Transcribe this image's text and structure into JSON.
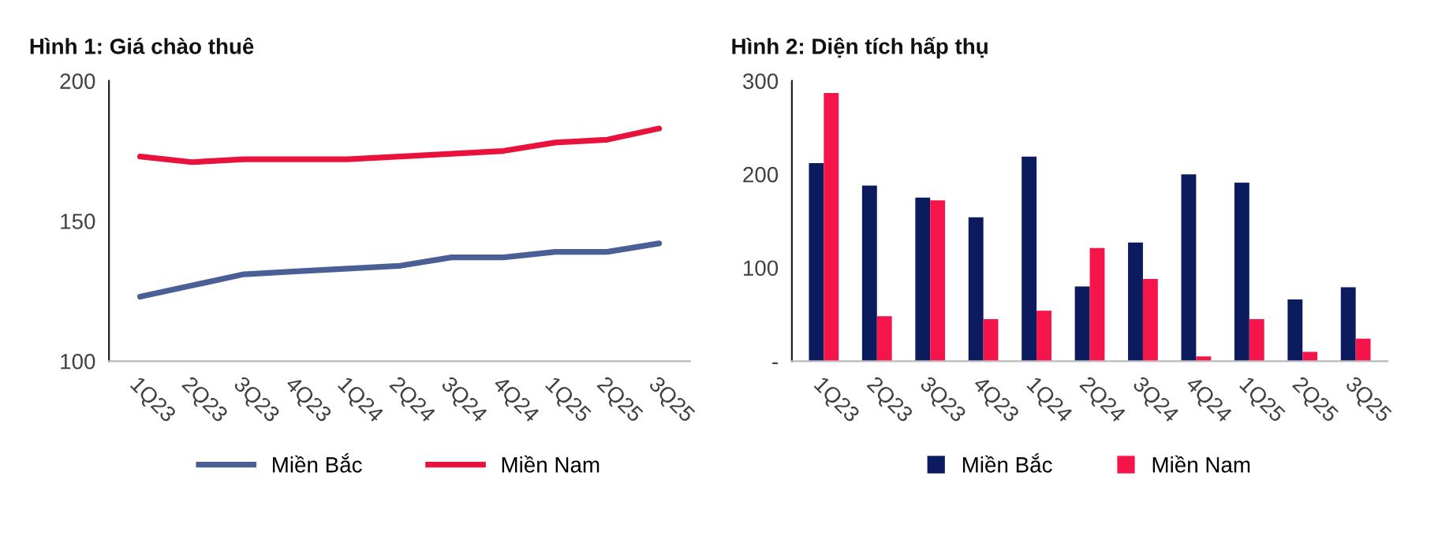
{
  "chart_data": [
    {
      "type": "line",
      "title": "Hình 1: Giá chào thuê",
      "categories": [
        "1Q23",
        "2Q23",
        "3Q23",
        "4Q23",
        "1Q24",
        "2Q24",
        "3Q24",
        "4Q24",
        "1Q25",
        "2Q25",
        "3Q25"
      ],
      "series": [
        {
          "name": "Miền Bắc",
          "color": "#4a5f96",
          "values": [
            123,
            127,
            131,
            132,
            133,
            134,
            137,
            137,
            139,
            139,
            142
          ]
        },
        {
          "name": "Miền Nam",
          "color": "#e8123c",
          "values": [
            173,
            171,
            172,
            172,
            172,
            173,
            174,
            175,
            178,
            179,
            183
          ]
        }
      ],
      "ylim": [
        100,
        200
      ],
      "yticks": [
        100,
        150,
        200
      ],
      "grid": false,
      "legend": "bottom",
      "marker": "none",
      "line_style": "solid"
    },
    {
      "type": "bar",
      "title": "Hình 2: Diện tích hấp thụ",
      "categories": [
        "1Q23",
        "2Q23",
        "3Q23",
        "4Q23",
        "1Q24",
        "2Q24",
        "3Q24",
        "4Q24",
        "1Q25",
        "2Q25",
        "3Q25"
      ],
      "series": [
        {
          "name": "Miền Bắc",
          "color": "#0c1a5e",
          "values": [
            212,
            188,
            175,
            154,
            219,
            80,
            127,
            200,
            191,
            66,
            79
          ]
        },
        {
          "name": "Miền Nam",
          "color": "#f5154b",
          "values": [
            287,
            48,
            172,
            45,
            54,
            121,
            88,
            5,
            45,
            10,
            24
          ]
        }
      ],
      "ylim": [
        0,
        300
      ],
      "yticks": [
        {
          "value": 0,
          "label": "-"
        },
        100,
        200,
        300
      ],
      "grid": false,
      "legend": "bottom"
    }
  ]
}
